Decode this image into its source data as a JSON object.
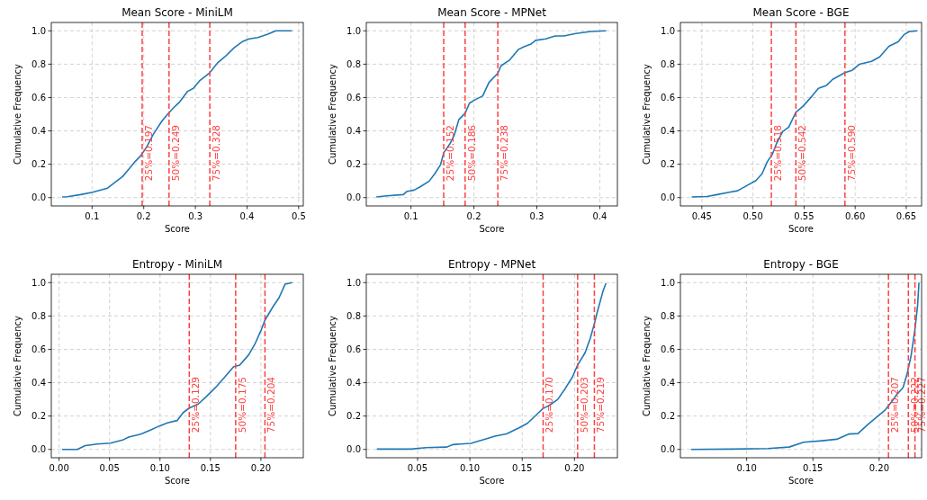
{
  "chart_data": [
    {
      "type": "line",
      "title": "Mean Score - MiniLM",
      "xlabel": "Score",
      "ylabel": "Cumulative Frequency",
      "grid": true,
      "line_style": "solid",
      "xlim": [
        0.021,
        0.509
      ],
      "ylim": [
        -0.05,
        1.05
      ],
      "xticks": [
        0.1,
        0.2,
        0.3,
        0.4,
        0.5
      ],
      "yticks": [
        {
          "value": 0,
          "label": "0.0"
        },
        {
          "value": 0.2,
          "label": "0.2"
        },
        {
          "value": 0.4,
          "label": "0.4"
        },
        {
          "value": 0.6,
          "label": "0.6"
        },
        {
          "value": 0.8,
          "label": "0.8"
        },
        {
          "value": 1,
          "label": "1.0"
        }
      ],
      "series": [
        {
          "color": "#1f77b4",
          "x": [
            0.042,
            0.052,
            0.078,
            0.101,
            0.13,
            0.148,
            0.159,
            0.171,
            0.183,
            0.194,
            0.206,
            0.218,
            0.235,
            0.247,
            0.258,
            0.27,
            0.285,
            0.296,
            0.308,
            0.328,
            0.343,
            0.357,
            0.375,
            0.392,
            0.404,
            0.421,
            0.439,
            0.456,
            0.487
          ],
          "values": [
            0.004,
            0.005,
            0.018,
            0.032,
            0.057,
            0.1,
            0.126,
            0.17,
            0.215,
            0.25,
            0.305,
            0.377,
            0.458,
            0.503,
            0.539,
            0.575,
            0.637,
            0.655,
            0.7,
            0.749,
            0.808,
            0.844,
            0.898,
            0.937,
            0.952,
            0.96,
            0.978,
            1.0,
            1.0
          ]
        }
      ],
      "ref_lines": [
        {
          "axis": "x",
          "value": 0.197,
          "label": "25%=0.197",
          "color": "#ff4040",
          "line_style": "dashed"
        },
        {
          "axis": "x",
          "value": 0.249,
          "label": "50%=0.249",
          "color": "#ff4040",
          "line_style": "dashed"
        },
        {
          "axis": "x",
          "value": 0.328,
          "label": "75%=0.328",
          "color": "#ff4040",
          "line_style": "dashed"
        }
      ]
    },
    {
      "type": "line",
      "title": "Mean Score - MPNet",
      "xlabel": "Score",
      "ylabel": "Cumulative Frequency",
      "grid": true,
      "line_style": "solid",
      "xlim": [
        0.029,
        0.428
      ],
      "ylim": [
        -0.05,
        1.05
      ],
      "xticks": [
        0.1,
        0.2,
        0.3,
        0.4
      ],
      "yticks": [
        {
          "value": 0,
          "label": "0.0"
        },
        {
          "value": 0.2,
          "label": "0.2"
        },
        {
          "value": 0.4,
          "label": "0.4"
        },
        {
          "value": 0.6,
          "label": "0.6"
        },
        {
          "value": 0.8,
          "label": "0.8"
        },
        {
          "value": 1,
          "label": "1.0"
        }
      ],
      "series": [
        {
          "color": "#1f77b4",
          "x": [
            0.045,
            0.062,
            0.088,
            0.093,
            0.105,
            0.114,
            0.129,
            0.138,
            0.147,
            0.152,
            0.162,
            0.169,
            0.176,
            0.186,
            0.193,
            0.2,
            0.214,
            0.224,
            0.238,
            0.243,
            0.257,
            0.271,
            0.281,
            0.29,
            0.298,
            0.314,
            0.329,
            0.343,
            0.362,
            0.386,
            0.41
          ],
          "values": [
            0.004,
            0.011,
            0.018,
            0.036,
            0.045,
            0.063,
            0.099,
            0.144,
            0.197,
            0.269,
            0.323,
            0.377,
            0.467,
            0.506,
            0.566,
            0.583,
            0.61,
            0.691,
            0.745,
            0.79,
            0.826,
            0.889,
            0.907,
            0.919,
            0.943,
            0.952,
            0.969,
            0.969,
            0.984,
            0.996,
            1.0
          ]
        }
      ],
      "ref_lines": [
        {
          "axis": "x",
          "value": 0.152,
          "label": "25%=0.152",
          "color": "#ff4040",
          "line_style": "dashed"
        },
        {
          "axis": "x",
          "value": 0.186,
          "label": "50%=0.186",
          "color": "#ff4040",
          "line_style": "dashed"
        },
        {
          "axis": "x",
          "value": 0.238,
          "label": "75%=0.238",
          "color": "#ff4040",
          "line_style": "dashed"
        }
      ]
    },
    {
      "type": "line",
      "title": "Mean Score - BGE",
      "xlabel": "Score",
      "ylabel": "Cumulative Frequency",
      "grid": true,
      "line_style": "solid",
      "xlim": [
        0.429,
        0.665
      ],
      "ylim": [
        -0.05,
        1.05
      ],
      "xticks": [
        {
          "value": 0.45,
          "label": "0.45"
        },
        {
          "value": 0.5,
          "label": "0.50"
        },
        {
          "value": 0.55,
          "label": "0.55"
        },
        {
          "value": 0.6,
          "label": "0.60"
        },
        {
          "value": 0.65,
          "label": "0.65"
        }
      ],
      "yticks": [
        {
          "value": 0,
          "label": "0.0"
        },
        {
          "value": 0.2,
          "label": "0.2"
        },
        {
          "value": 0.4,
          "label": "0.4"
        },
        {
          "value": 0.6,
          "label": "0.6"
        },
        {
          "value": 0.8,
          "label": "0.8"
        },
        {
          "value": 1,
          "label": "1.0"
        }
      ],
      "series": [
        {
          "color": "#1f77b4",
          "x": [
            0.44,
            0.455,
            0.465,
            0.477,
            0.485,
            0.494,
            0.503,
            0.509,
            0.514,
            0.519,
            0.523,
            0.529,
            0.535,
            0.542,
            0.549,
            0.558,
            0.564,
            0.572,
            0.578,
            0.59,
            0.597,
            0.604,
            0.616,
            0.624,
            0.633,
            0.642,
            0.648,
            0.653,
            0.661
          ],
          "values": [
            0.004,
            0.007,
            0.018,
            0.032,
            0.041,
            0.072,
            0.102,
            0.144,
            0.215,
            0.26,
            0.323,
            0.395,
            0.422,
            0.512,
            0.548,
            0.61,
            0.655,
            0.673,
            0.709,
            0.749,
            0.763,
            0.799,
            0.817,
            0.844,
            0.907,
            0.934,
            0.978,
            0.996,
            1.0
          ]
        }
      ],
      "ref_lines": [
        {
          "axis": "x",
          "value": 0.518,
          "label": "25%=0.518",
          "color": "#ff4040",
          "line_style": "dashed"
        },
        {
          "axis": "x",
          "value": 0.542,
          "label": "50%=0.542",
          "color": "#ff4040",
          "line_style": "dashed"
        },
        {
          "axis": "x",
          "value": 0.59,
          "label": "75%=0.590",
          "color": "#ff4040",
          "line_style": "dashed"
        }
      ]
    },
    {
      "type": "line",
      "title": "Entropy - MiniLM",
      "xlabel": "Score",
      "ylabel": "Cumulative Frequency",
      "grid": true,
      "line_style": "solid",
      "xlim": [
        -0.0077,
        0.242
      ],
      "ylim": [
        -0.05,
        1.05
      ],
      "xticks": [
        {
          "value": 0,
          "label": "0.00"
        },
        {
          "value": 0.05,
          "label": "0.05"
        },
        {
          "value": 0.1,
          "label": "0.10"
        },
        {
          "value": 0.15,
          "label": "0.15"
        },
        {
          "value": 0.2,
          "label": "0.20"
        }
      ],
      "yticks": [
        {
          "value": 0,
          "label": "0.0"
        },
        {
          "value": 0.2,
          "label": "0.2"
        },
        {
          "value": 0.4,
          "label": "0.4"
        },
        {
          "value": 0.6,
          "label": "0.6"
        },
        {
          "value": 0.8,
          "label": "0.8"
        },
        {
          "value": 1,
          "label": "1.0"
        }
      ],
      "series": [
        {
          "color": "#1f77b4",
          "x": [
            0.003,
            0.018,
            0.026,
            0.038,
            0.051,
            0.063,
            0.069,
            0.081,
            0.09,
            0.1,
            0.108,
            0.117,
            0.123,
            0.129,
            0.138,
            0.146,
            0.155,
            0.164,
            0.173,
            0.179,
            0.188,
            0.194,
            0.2,
            0.204,
            0.212,
            0.218,
            0.224,
            0.231
          ],
          "values": [
            0,
            0,
            0.023,
            0.032,
            0.038,
            0.056,
            0.074,
            0.092,
            0.115,
            0.142,
            0.16,
            0.173,
            0.221,
            0.248,
            0.272,
            0.317,
            0.371,
            0.433,
            0.496,
            0.505,
            0.568,
            0.631,
            0.712,
            0.775,
            0.856,
            0.91,
            0.991,
            1.0
          ]
        }
      ],
      "ref_lines": [
        {
          "axis": "x",
          "value": 0.129,
          "label": "25%=0.129",
          "color": "#ff4040",
          "line_style": "dashed"
        },
        {
          "axis": "x",
          "value": 0.175,
          "label": "50%=0.175",
          "color": "#ff4040",
          "line_style": "dashed"
        },
        {
          "axis": "x",
          "value": 0.204,
          "label": "75%=0.204",
          "color": "#ff4040",
          "line_style": "dashed"
        }
      ]
    },
    {
      "type": "line",
      "title": "Entropy - MPNet",
      "xlabel": "Score",
      "ylabel": "Cumulative Frequency",
      "grid": true,
      "line_style": "solid",
      "xlim": [
        0.001,
        0.241
      ],
      "ylim": [
        -0.05,
        1.05
      ],
      "xticks": [
        {
          "value": 0.05,
          "label": "0.05"
        },
        {
          "value": 0.1,
          "label": "0.10"
        },
        {
          "value": 0.15,
          "label": "0.15"
        },
        {
          "value": 0.2,
          "label": "0.20"
        }
      ],
      "yticks": [
        {
          "value": 0,
          "label": "0.0"
        },
        {
          "value": 0.2,
          "label": "0.2"
        },
        {
          "value": 0.4,
          "label": "0.4"
        },
        {
          "value": 0.6,
          "label": "0.6"
        },
        {
          "value": 0.8,
          "label": "0.8"
        },
        {
          "value": 1,
          "label": "1.0"
        }
      ],
      "series": [
        {
          "color": "#1f77b4",
          "x": [
            0.011,
            0.044,
            0.058,
            0.078,
            0.084,
            0.101,
            0.112,
            0.124,
            0.135,
            0.147,
            0.155,
            0.164,
            0.17,
            0.176,
            0.184,
            0.19,
            0.198,
            0.203,
            0.21,
            0.215,
            0.219,
            0.222,
            0.227,
            0.23
          ],
          "values": [
            0.002,
            0.002,
            0.011,
            0.014,
            0.029,
            0.036,
            0.057,
            0.079,
            0.093,
            0.129,
            0.156,
            0.21,
            0.246,
            0.264,
            0.3,
            0.354,
            0.434,
            0.506,
            0.578,
            0.664,
            0.754,
            0.829,
            0.943,
            0.996
          ]
        }
      ],
      "ref_lines": [
        {
          "axis": "x",
          "value": 0.17,
          "label": "25%=0.170",
          "color": "#ff4040",
          "line_style": "dashed"
        },
        {
          "axis": "x",
          "value": 0.203,
          "label": "50%=0.203",
          "color": "#ff4040",
          "line_style": "dashed"
        },
        {
          "axis": "x",
          "value": 0.219,
          "label": "75%=0.219",
          "color": "#ff4040",
          "line_style": "dashed"
        }
      ]
    },
    {
      "type": "line",
      "title": "Entropy - BGE",
      "xlabel": "Score",
      "ylabel": "Cumulative Frequency",
      "grid": true,
      "line_style": "solid",
      "xlim": [
        0.05,
        0.232
      ],
      "ylim": [
        -0.05,
        1.05
      ],
      "xticks": [
        {
          "value": 0.1,
          "label": "0.10"
        },
        {
          "value": 0.15,
          "label": "0.15"
        },
        {
          "value": 0.2,
          "label": "0.20"
        }
      ],
      "yticks": [
        {
          "value": 0,
          "label": "0.0"
        },
        {
          "value": 0.2,
          "label": "0.2"
        },
        {
          "value": 0.4,
          "label": "0.4"
        },
        {
          "value": 0.6,
          "label": "0.6"
        },
        {
          "value": 0.8,
          "label": "0.8"
        },
        {
          "value": 1,
          "label": "1.0"
        }
      ],
      "series": [
        {
          "color": "#1f77b4",
          "x": [
            0.058,
            0.089,
            0.116,
            0.132,
            0.143,
            0.157,
            0.168,
            0.177,
            0.184,
            0.191,
            0.195,
            0.204,
            0.209,
            0.213,
            0.218,
            0.221,
            0.224,
            0.227,
            0.229,
            0.23
          ],
          "values": [
            0,
            0.002,
            0.005,
            0.014,
            0.043,
            0.052,
            0.061,
            0.092,
            0.095,
            0.146,
            0.173,
            0.232,
            0.281,
            0.326,
            0.371,
            0.451,
            0.559,
            0.721,
            0.865,
            1.0
          ]
        }
      ],
      "ref_lines": [
        {
          "axis": "x",
          "value": 0.207,
          "label": "25%=0.207",
          "color": "#ff4040",
          "line_style": "dashed"
        },
        {
          "axis": "x",
          "value": 0.222,
          "label": "50%=0.222",
          "color": "#ff4040",
          "line_style": "dashed"
        },
        {
          "axis": "x",
          "value": 0.227,
          "label": "75%=0.227",
          "color": "#ff4040",
          "line_style": "dashed"
        }
      ]
    }
  ]
}
